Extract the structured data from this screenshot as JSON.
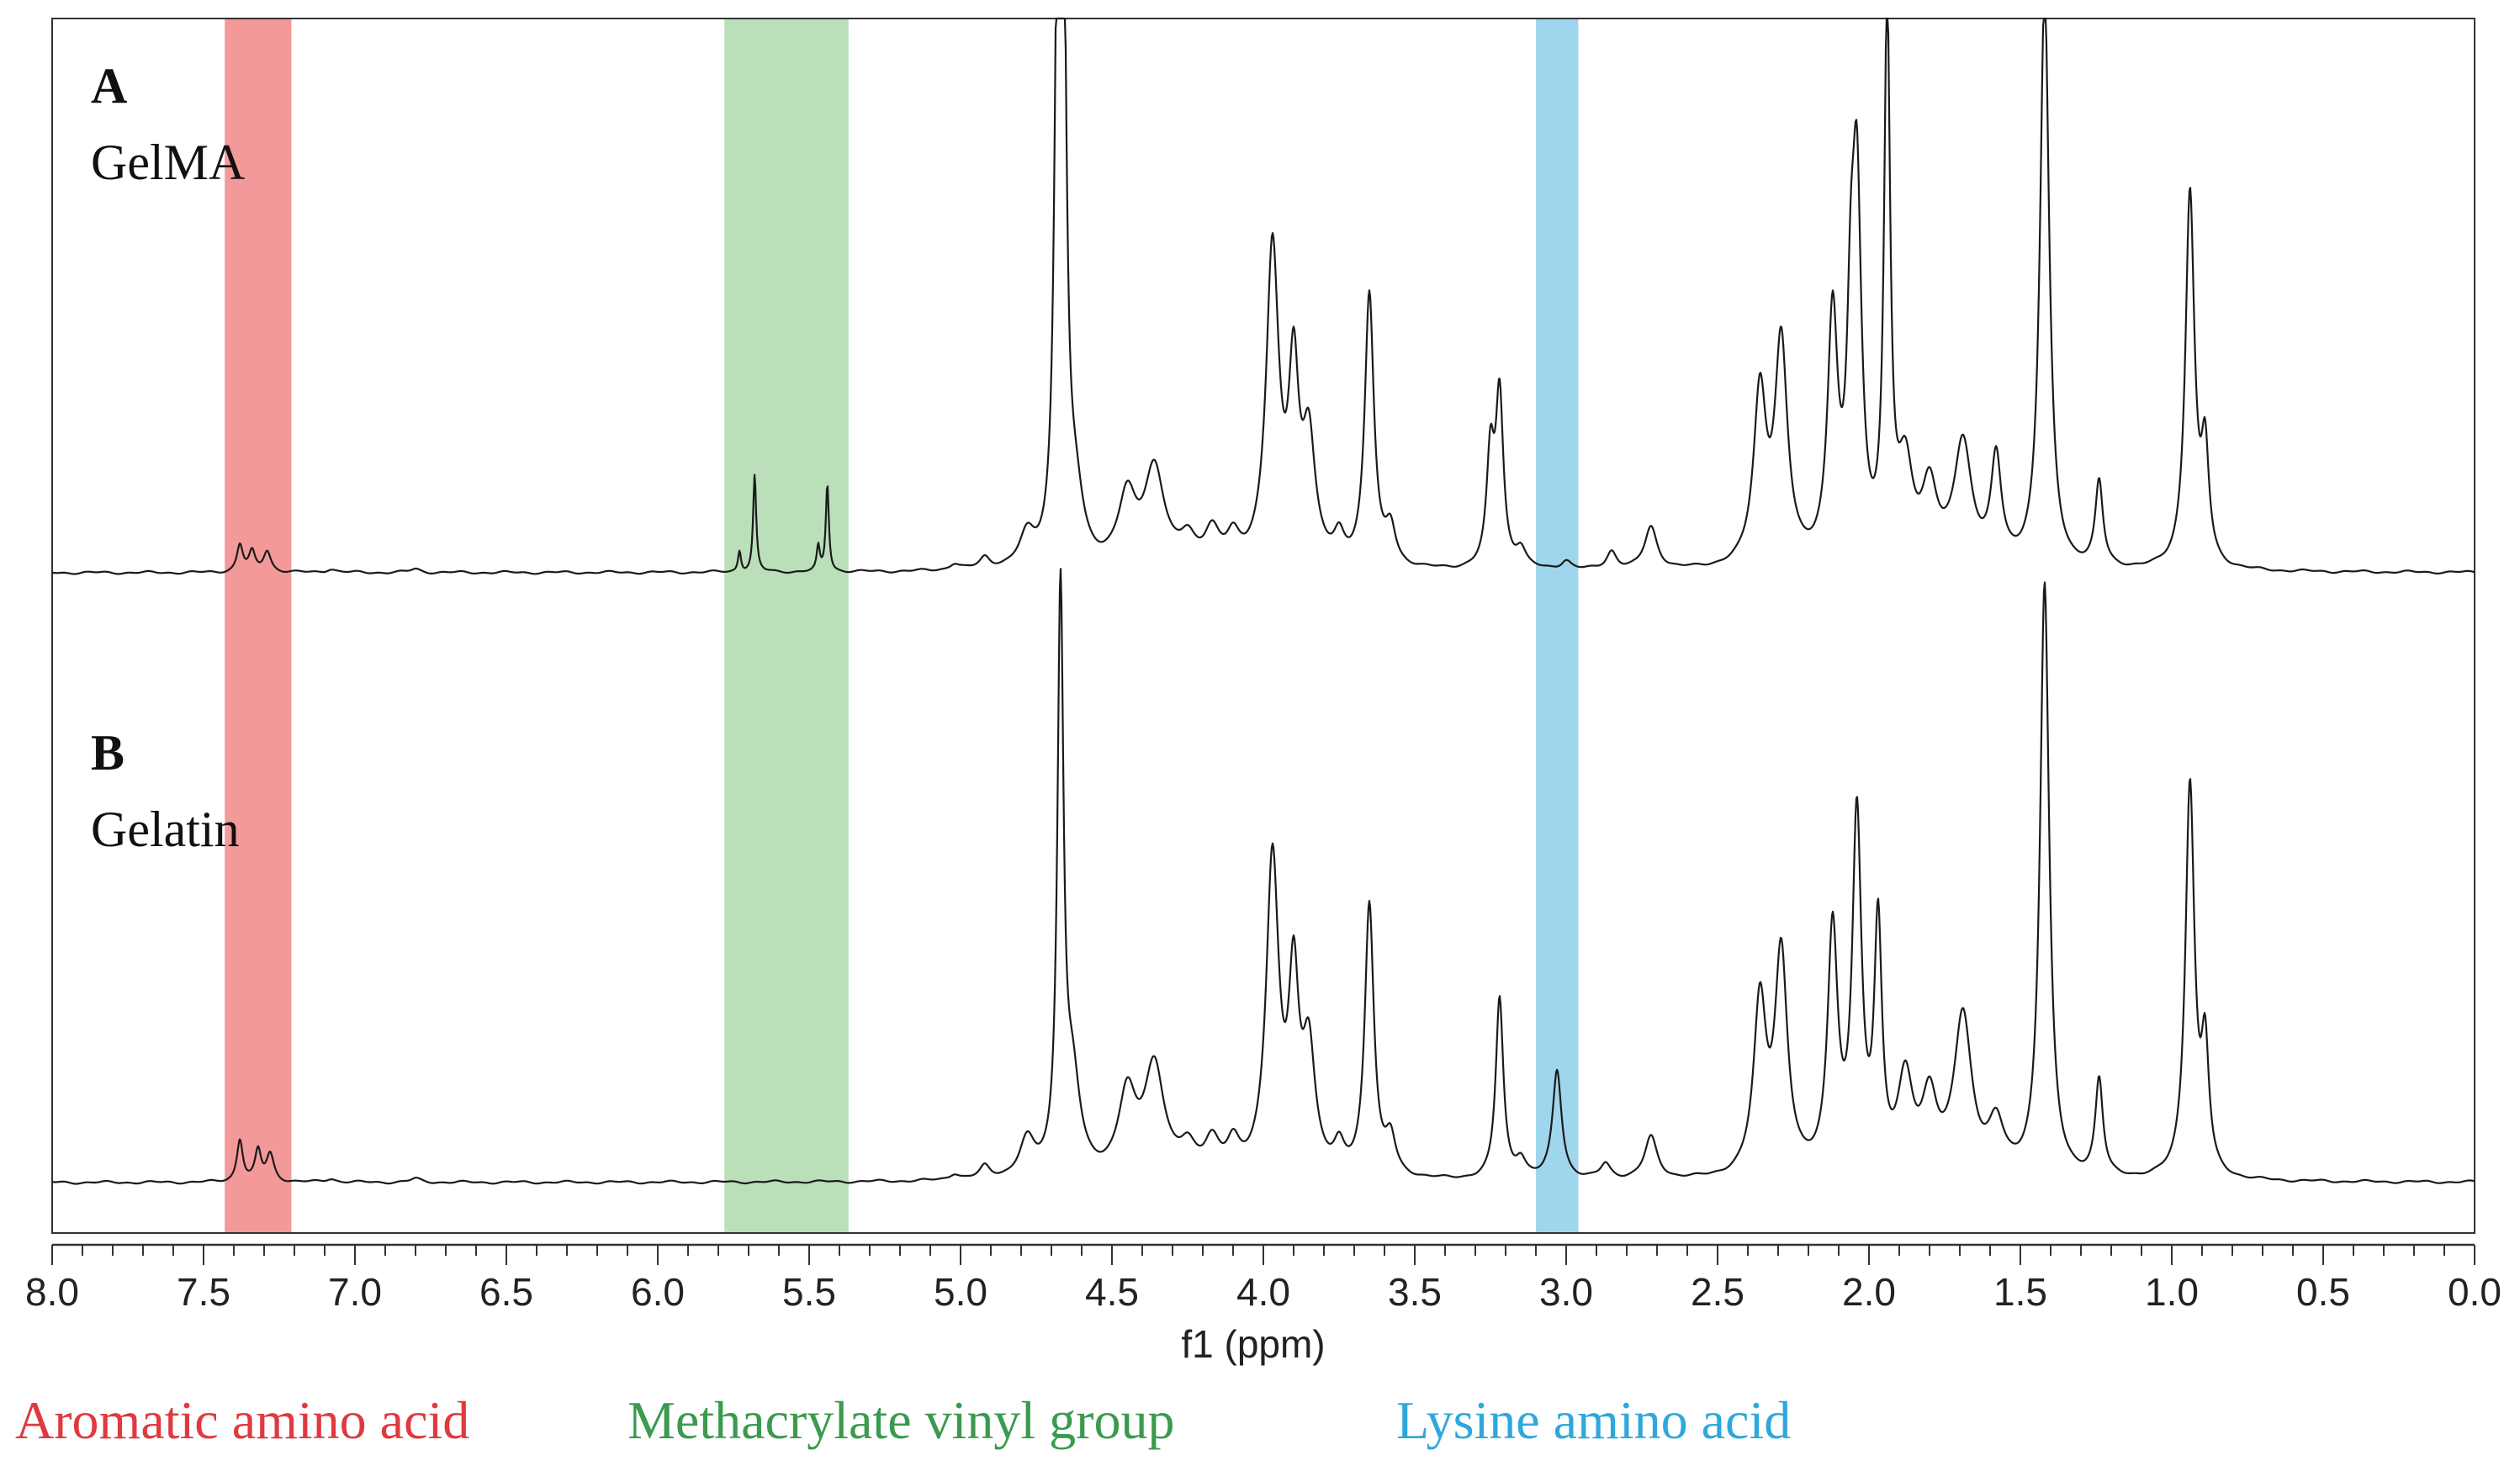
{
  "chart_data": {
    "type": "line",
    "xlabel": "f1 (ppm)",
    "xlim": [
      8.0,
      0.0
    ],
    "x_reversed": true,
    "grid": false,
    "ticks": [
      "8.0",
      "7.5",
      "7.0",
      "6.5",
      "6.0",
      "5.5",
      "5.0",
      "4.5",
      "4.0",
      "3.5",
      "3.0",
      "2.5",
      "2.0",
      "1.5",
      "1.0",
      "0.5",
      "0.0"
    ],
    "regions": [
      {
        "label": "Aromatic amino acid",
        "x_start": 7.43,
        "x_end": 7.21,
        "color": "#f4999a",
        "label_color": "#e0393f"
      },
      {
        "label": "Methacrylate vinyl group",
        "x_start": 5.78,
        "x_end": 5.37,
        "color": "#badfb9",
        "label_color": "#3a9a4e"
      },
      {
        "label": "Lysine amino acid",
        "x_start": 3.1,
        "x_end": 2.96,
        "color": "#9fd6ee",
        "label_color": "#2ea8dc"
      }
    ],
    "series": [
      {
        "letter": "A",
        "name": "GelMA",
        "color": "#1a1a1a",
        "peaks": [
          [
            7.38,
            0.045,
            0.012
          ],
          [
            7.34,
            0.032,
            0.012
          ],
          [
            7.29,
            0.035,
            0.015
          ],
          [
            7.08,
            0.006,
            0.02
          ],
          [
            6.8,
            0.006,
            0.02
          ],
          [
            5.73,
            0.035,
            0.006
          ],
          [
            5.68,
            0.16,
            0.006
          ],
          [
            5.47,
            0.04,
            0.006
          ],
          [
            5.44,
            0.145,
            0.006
          ],
          [
            5.02,
            0.01,
            0.02
          ],
          [
            4.92,
            0.018,
            0.02
          ],
          [
            4.78,
            0.05,
            0.03
          ],
          [
            4.68,
            0.9,
            0.012
          ],
          [
            4.66,
            0.9,
            0.012
          ],
          [
            4.62,
            0.1,
            0.03
          ],
          [
            4.45,
            0.11,
            0.035
          ],
          [
            4.36,
            0.16,
            0.04
          ],
          [
            4.25,
            0.04,
            0.03
          ],
          [
            4.17,
            0.055,
            0.03
          ],
          [
            4.1,
            0.04,
            0.025
          ],
          [
            3.97,
            0.52,
            0.025
          ],
          [
            3.9,
            0.3,
            0.02
          ],
          [
            3.85,
            0.2,
            0.025
          ],
          [
            3.75,
            0.04,
            0.02
          ],
          [
            3.65,
            0.45,
            0.018
          ],
          [
            3.58,
            0.06,
            0.02
          ],
          [
            3.25,
            0.18,
            0.015
          ],
          [
            3.22,
            0.28,
            0.015
          ],
          [
            3.15,
            0.03,
            0.02
          ],
          [
            3.0,
            0.015,
            0.02
          ],
          [
            2.85,
            0.03,
            0.02
          ],
          [
            2.72,
            0.07,
            0.025
          ],
          [
            2.36,
            0.28,
            0.025
          ],
          [
            2.29,
            0.36,
            0.025
          ],
          [
            2.12,
            0.4,
            0.02
          ],
          [
            2.06,
            0.3,
            0.015
          ],
          [
            2.04,
            0.58,
            0.018
          ],
          [
            1.94,
            0.9,
            0.012
          ],
          [
            1.88,
            0.15,
            0.03
          ],
          [
            1.8,
            0.12,
            0.03
          ],
          [
            1.69,
            0.2,
            0.035
          ],
          [
            1.58,
            0.17,
            0.02
          ],
          [
            1.42,
            0.96,
            0.018
          ],
          [
            1.24,
            0.14,
            0.015
          ],
          [
            0.94,
            0.62,
            0.018
          ],
          [
            0.89,
            0.18,
            0.015
          ]
        ]
      },
      {
        "letter": "B",
        "name": "Gelatin",
        "color": "#1a1a1a",
        "peaks": [
          [
            7.38,
            0.07,
            0.012
          ],
          [
            7.32,
            0.05,
            0.012
          ],
          [
            7.28,
            0.045,
            0.015
          ],
          [
            7.08,
            0.006,
            0.02
          ],
          [
            6.8,
            0.006,
            0.02
          ],
          [
            5.02,
            0.01,
            0.02
          ],
          [
            4.92,
            0.02,
            0.02
          ],
          [
            4.78,
            0.06,
            0.03
          ],
          [
            4.67,
            0.95,
            0.012
          ],
          [
            4.63,
            0.15,
            0.03
          ],
          [
            4.45,
            0.13,
            0.035
          ],
          [
            4.36,
            0.18,
            0.04
          ],
          [
            4.25,
            0.04,
            0.03
          ],
          [
            4.17,
            0.055,
            0.03
          ],
          [
            4.1,
            0.045,
            0.025
          ],
          [
            3.97,
            0.52,
            0.025
          ],
          [
            3.9,
            0.3,
            0.02
          ],
          [
            3.85,
            0.2,
            0.025
          ],
          [
            3.75,
            0.04,
            0.02
          ],
          [
            3.65,
            0.45,
            0.018
          ],
          [
            3.58,
            0.06,
            0.02
          ],
          [
            3.22,
            0.3,
            0.015
          ],
          [
            3.15,
            0.03,
            0.02
          ],
          [
            3.03,
            0.18,
            0.018
          ],
          [
            2.87,
            0.025,
            0.02
          ],
          [
            2.72,
            0.07,
            0.025
          ],
          [
            2.36,
            0.28,
            0.025
          ],
          [
            2.29,
            0.36,
            0.025
          ],
          [
            2.12,
            0.4,
            0.02
          ],
          [
            2.04,
            0.58,
            0.018
          ],
          [
            1.97,
            0.4,
            0.015
          ],
          [
            1.88,
            0.15,
            0.03
          ],
          [
            1.8,
            0.12,
            0.03
          ],
          [
            1.69,
            0.26,
            0.035
          ],
          [
            1.58,
            0.08,
            0.03
          ],
          [
            1.42,
            0.98,
            0.018
          ],
          [
            1.24,
            0.16,
            0.015
          ],
          [
            0.94,
            0.65,
            0.018
          ],
          [
            0.89,
            0.2,
            0.015
          ]
        ]
      }
    ]
  }
}
